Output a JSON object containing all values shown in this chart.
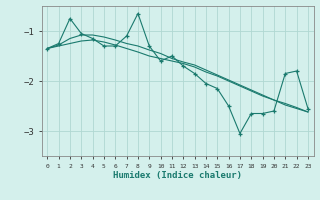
{
  "xlabel": "Humidex (Indice chaleur)",
  "bg_color": "#d4f0ec",
  "grid_color": "#b0d8d2",
  "line_color": "#1a7a6e",
  "x_values": [
    0,
    1,
    2,
    3,
    4,
    5,
    6,
    7,
    8,
    9,
    10,
    11,
    12,
    13,
    14,
    15,
    16,
    17,
    18,
    19,
    20,
    21,
    22,
    23
  ],
  "series1": [
    -1.35,
    -1.25,
    -0.75,
    -1.05,
    -1.15,
    -1.3,
    -1.3,
    -1.1,
    -0.65,
    -1.3,
    -1.6,
    -1.5,
    -1.7,
    -1.85,
    -2.05,
    -2.15,
    -2.5,
    -3.05,
    -2.65,
    -2.65,
    -2.6,
    -1.85,
    -1.8,
    -2.55
  ],
  "series2": [
    -1.35,
    -1.3,
    -1.25,
    -1.2,
    -1.18,
    -1.22,
    -1.28,
    -1.35,
    -1.42,
    -1.5,
    -1.55,
    -1.6,
    -1.65,
    -1.72,
    -1.82,
    -1.9,
    -2.0,
    -2.1,
    -2.2,
    -2.3,
    -2.38,
    -2.48,
    -2.55,
    -2.62
  ],
  "series3": [
    -1.35,
    -1.28,
    -1.15,
    -1.08,
    -1.08,
    -1.12,
    -1.18,
    -1.25,
    -1.3,
    -1.38,
    -1.45,
    -1.55,
    -1.62,
    -1.68,
    -1.78,
    -1.88,
    -1.98,
    -2.08,
    -2.18,
    -2.28,
    -2.38,
    -2.45,
    -2.53,
    -2.62
  ],
  "ylim": [
    -3.5,
    -0.5
  ],
  "yticks": [
    -3.0,
    -2.0,
    -1.0
  ],
  "xlim": [
    -0.5,
    23.5
  ]
}
